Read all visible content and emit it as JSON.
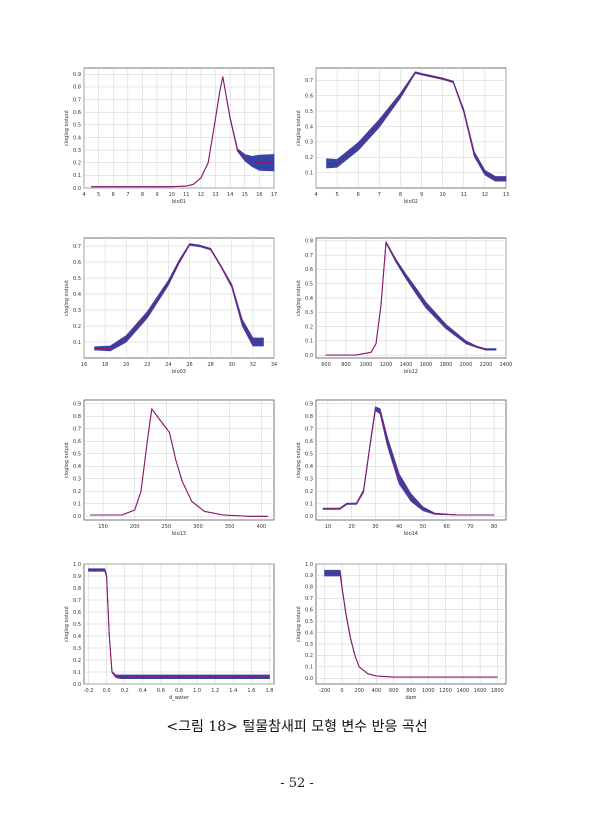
{
  "caption": "<그림 18> 털물참새피 모형 변수 반응 곡선",
  "page_number": "- 52 -",
  "colors": {
    "band": "#3346a8",
    "line": "#8a1a6a",
    "grid": "#cfcfcf"
  },
  "chart_data": [
    {
      "type": "area",
      "xlabel": "bio01",
      "ylabel": "cloglog output",
      "xlim": [
        4,
        17
      ],
      "ylim": [
        0,
        0.95
      ],
      "xticks": [
        "4",
        "5",
        "6",
        "7",
        "8",
        "9",
        "10",
        "11",
        "12",
        "13",
        "14",
        "15",
        "16",
        "17"
      ],
      "yticks": [
        "0.0",
        "0.1",
        "0.2",
        "0.3",
        "0.4",
        "0.5",
        "0.6",
        "0.7",
        "0.8",
        "0.9"
      ],
      "x": [
        4.5,
        8,
        10,
        11,
        11.5,
        12,
        12.5,
        13,
        13.3,
        13.5,
        14,
        14.5,
        15,
        15.5,
        16,
        17
      ],
      "y": [
        0.01,
        0.01,
        0.01,
        0.015,
        0.03,
        0.08,
        0.2,
        0.55,
        0.77,
        0.88,
        0.55,
        0.3,
        0.24,
        0.21,
        0.2,
        0.2
      ],
      "band": [
        0,
        0,
        0,
        0,
        0,
        0,
        0,
        0,
        0,
        0,
        0.01,
        0.02,
        0.05,
        0.08,
        0.12,
        0.13
      ]
    },
    {
      "type": "area",
      "xlabel": "bio02",
      "ylabel": "cloglog output",
      "xlim": [
        4,
        13
      ],
      "ylim": [
        0,
        0.78
      ],
      "xticks": [
        "4",
        "5",
        "6",
        "7",
        "8",
        "9",
        "10",
        "11",
        "12",
        "13"
      ],
      "yticks": [
        "0.1",
        "0.2",
        "0.3",
        "0.4",
        "0.5",
        "0.6",
        "0.7"
      ],
      "x": [
        4.5,
        5,
        6,
        7,
        8,
        8.7,
        9,
        10,
        10.5,
        11,
        11.5,
        12,
        12.5,
        13
      ],
      "y": [
        0.16,
        0.16,
        0.27,
        0.42,
        0.6,
        0.75,
        0.74,
        0.71,
        0.69,
        0.5,
        0.22,
        0.1,
        0.06,
        0.06
      ],
      "band": [
        0.06,
        0.05,
        0.05,
        0.05,
        0.03,
        0.01,
        0.01,
        0.01,
        0.01,
        0.02,
        0.03,
        0.03,
        0.03,
        0.03
      ]
    },
    {
      "type": "area",
      "xlabel": "bio03",
      "ylabel": "cloglog output",
      "xlim": [
        16,
        34
      ],
      "ylim": [
        0,
        0.75
      ],
      "xticks": [
        "16",
        "18",
        "20",
        "22",
        "24",
        "26",
        "28",
        "30",
        "32",
        "34"
      ],
      "yticks": [
        "0.1",
        "0.2",
        "0.3",
        "0.4",
        "0.5",
        "0.6",
        "0.7"
      ],
      "x": [
        17,
        18.5,
        20,
        22,
        24,
        25,
        26,
        27,
        28,
        29,
        30,
        31,
        32,
        33
      ],
      "y": [
        0.06,
        0.06,
        0.12,
        0.27,
        0.47,
        0.6,
        0.71,
        0.7,
        0.68,
        0.57,
        0.45,
        0.22,
        0.1,
        0.1
      ],
      "band": [
        0.02,
        0.03,
        0.04,
        0.04,
        0.03,
        0.02,
        0.01,
        0.01,
        0.01,
        0.01,
        0.02,
        0.04,
        0.05,
        0.05
      ]
    },
    {
      "type": "area",
      "xlabel": "bio12",
      "ylabel": "cloglog output",
      "xlim": [
        500,
        2400
      ],
      "ylim": [
        -0.02,
        0.82
      ],
      "xticks": [
        "600",
        "800",
        "1000",
        "1200",
        "1400",
        "1600",
        "1800",
        "2000",
        "2200",
        "2400"
      ],
      "yticks": [
        "0.0",
        "0.1",
        "0.2",
        "0.3",
        "0.4",
        "0.5",
        "0.6",
        "0.7",
        "0.8"
      ],
      "x": [
        600,
        900,
        1050,
        1100,
        1150,
        1200,
        1300,
        1400,
        1500,
        1600,
        1800,
        2000,
        2100,
        2200,
        2300
      ],
      "y": [
        0.0,
        0.0,
        0.02,
        0.08,
        0.35,
        0.79,
        0.66,
        0.55,
        0.45,
        0.35,
        0.2,
        0.09,
        0.06,
        0.04,
        0.04
      ],
      "band": [
        0,
        0,
        0,
        0,
        0,
        0.01,
        0.02,
        0.03,
        0.04,
        0.04,
        0.03,
        0.02,
        0.01,
        0.01,
        0.01
      ]
    },
    {
      "type": "line",
      "xlabel": "bio13",
      "ylabel": "cloglog output",
      "xlim": [
        120,
        420
      ],
      "ylim": [
        -0.03,
        0.93
      ],
      "xticks": [
        "150",
        "200",
        "250",
        "300",
        "350",
        "400"
      ],
      "yticks": [
        "0.0",
        "0.1",
        "0.2",
        "0.3",
        "0.4",
        "0.5",
        "0.6",
        "0.7",
        "0.8",
        "0.9"
      ],
      "x": [
        130,
        180,
        200,
        210,
        220,
        227,
        240,
        255,
        265,
        275,
        290,
        310,
        340,
        380,
        410
      ],
      "y": [
        0.01,
        0.01,
        0.05,
        0.2,
        0.6,
        0.86,
        0.77,
        0.67,
        0.45,
        0.28,
        0.12,
        0.04,
        0.01,
        0.0,
        0.0
      ],
      "band": [
        0,
        0,
        0,
        0,
        0,
        0,
        0,
        0,
        0,
        0,
        0,
        0,
        0,
        0,
        0
      ]
    },
    {
      "type": "area",
      "xlabel": "bio14",
      "ylabel": "cloglog output",
      "xlim": [
        5,
        85
      ],
      "ylim": [
        -0.03,
        0.93
      ],
      "xticks": [
        "10",
        "20",
        "30",
        "40",
        "50",
        "60",
        "70",
        "80"
      ],
      "yticks": [
        "0.0",
        "0.1",
        "0.2",
        "0.3",
        "0.4",
        "0.5",
        "0.6",
        "0.7",
        "0.8",
        "0.9"
      ],
      "x": [
        8,
        15,
        18,
        22,
        25,
        28,
        30,
        32,
        35,
        40,
        45,
        50,
        55,
        65,
        80
      ],
      "y": [
        0.06,
        0.06,
        0.1,
        0.1,
        0.2,
        0.6,
        0.86,
        0.84,
        0.6,
        0.3,
        0.15,
        0.06,
        0.02,
        0.01,
        0.01
      ],
      "band": [
        0.01,
        0.01,
        0.01,
        0.01,
        0.02,
        0.02,
        0.03,
        0.04,
        0.07,
        0.08,
        0.06,
        0.03,
        0.01,
        0,
        0
      ]
    },
    {
      "type": "area",
      "xlabel": "d_water",
      "ylabel": "cloglog output",
      "xlim": [
        -0.25,
        1.85
      ],
      "ylim": [
        0,
        1.0
      ],
      "xticks": [
        "-0.2",
        "0.0",
        "0.2",
        "0.4",
        "0.6",
        "0.8",
        "1.0",
        "1.2",
        "1.4",
        "1.6",
        "1.8"
      ],
      "yticks": [
        "0.0",
        "0.1",
        "0.2",
        "0.3",
        "0.4",
        "0.5",
        "0.6",
        "0.7",
        "0.8",
        "0.9",
        "1.0"
      ],
      "x": [
        -0.2,
        -0.02,
        0.0,
        0.03,
        0.06,
        0.1,
        0.15,
        1.8
      ],
      "y": [
        0.95,
        0.95,
        0.9,
        0.4,
        0.1,
        0.065,
        0.06,
        0.06
      ],
      "band": [
        0.02,
        0.02,
        0.02,
        0.01,
        0.01,
        0.02,
        0.03,
        0.03
      ]
    },
    {
      "type": "area",
      "xlabel": "dam",
      "ylabel": "cloglog output",
      "xlim": [
        -300,
        1900
      ],
      "ylim": [
        -0.05,
        1.0
      ],
      "xticks": [
        "-200",
        "0",
        "200",
        "400",
        "600",
        "800",
        "1000",
        "1200",
        "1400",
        "1600",
        "1800"
      ],
      "yticks": [
        "0.0",
        "0.1",
        "0.2",
        "0.3",
        "0.4",
        "0.5",
        "0.6",
        "0.7",
        "0.8",
        "0.9",
        "1.0"
      ],
      "x": [
        -200,
        -20,
        0,
        50,
        100,
        150,
        200,
        300,
        400,
        600,
        1000,
        1800
      ],
      "y": [
        0.92,
        0.92,
        0.8,
        0.55,
        0.35,
        0.2,
        0.1,
        0.04,
        0.02,
        0.01,
        0.01,
        0.01
      ],
      "band": [
        0.05,
        0.05,
        0.02,
        0.01,
        0.01,
        0,
        0,
        0,
        0,
        0,
        0,
        0
      ]
    }
  ]
}
